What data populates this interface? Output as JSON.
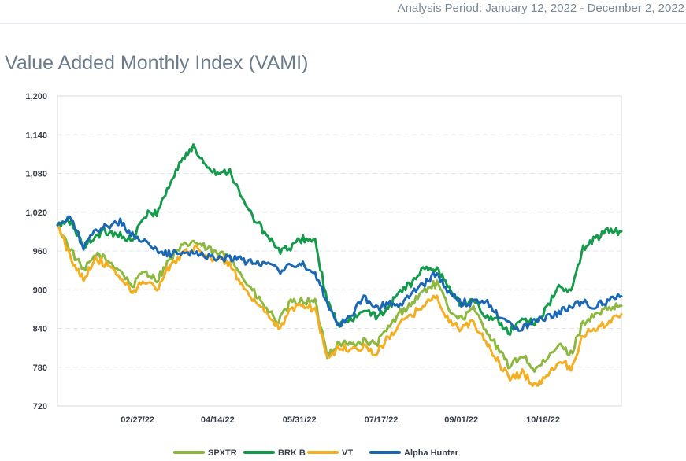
{
  "header": {
    "period_label": "Analysis Period: January 12, 2022 - December 2, 2022"
  },
  "chart_data": {
    "type": "line",
    "title": "Value Added Monthly Index (VAMI)",
    "xlabel": "",
    "ylabel": "",
    "x_ticks": [
      "02/27/22",
      "04/14/22",
      "05/31/22",
      "07/17/22",
      "09/01/22",
      "10/18/22"
    ],
    "y_ticks": [
      "1,200",
      "1,140",
      "1,080",
      "1,020",
      "960",
      "900",
      "840",
      "780",
      "720"
    ],
    "ylim": [
      720,
      1200
    ],
    "xlim": [
      "2022-01-12",
      "2022-12-02"
    ],
    "grid": "horizontal dashed",
    "legend_position": "bottom",
    "series": [
      {
        "name": "SPXTR",
        "color": "#8cb83f",
        "points": [
          [
            "2022-01-12",
            1000
          ],
          [
            "2022-01-20",
            960
          ],
          [
            "2022-01-27",
            928
          ],
          [
            "2022-02-03",
            955
          ],
          [
            "2022-02-10",
            945
          ],
          [
            "2022-02-17",
            930
          ],
          [
            "2022-02-24",
            905
          ],
          [
            "2022-03-03",
            930
          ],
          [
            "2022-03-10",
            915
          ],
          [
            "2022-03-17",
            945
          ],
          [
            "2022-03-24",
            965
          ],
          [
            "2022-03-31",
            975
          ],
          [
            "2022-04-07",
            965
          ],
          [
            "2022-04-14",
            955
          ],
          [
            "2022-04-21",
            955
          ],
          [
            "2022-04-28",
            920
          ],
          [
            "2022-05-05",
            895
          ],
          [
            "2022-05-12",
            870
          ],
          [
            "2022-05-19",
            850
          ],
          [
            "2022-05-26",
            880
          ],
          [
            "2022-06-02",
            883
          ],
          [
            "2022-06-09",
            880
          ],
          [
            "2022-06-16",
            800
          ],
          [
            "2022-06-23",
            818
          ],
          [
            "2022-06-30",
            815
          ],
          [
            "2022-07-07",
            820
          ],
          [
            "2022-07-14",
            815
          ],
          [
            "2022-07-21",
            840
          ],
          [
            "2022-07-28",
            865
          ],
          [
            "2022-08-04",
            880
          ],
          [
            "2022-08-11",
            900
          ],
          [
            "2022-08-18",
            910
          ],
          [
            "2022-08-25",
            870
          ],
          [
            "2022-09-01",
            855
          ],
          [
            "2022-09-08",
            870
          ],
          [
            "2022-09-15",
            840
          ],
          [
            "2022-09-22",
            808
          ],
          [
            "2022-09-29",
            780
          ],
          [
            "2022-10-06",
            800
          ],
          [
            "2022-10-13",
            775
          ],
          [
            "2022-10-20",
            790
          ],
          [
            "2022-10-27",
            815
          ],
          [
            "2022-11-03",
            800
          ],
          [
            "2022-11-10",
            850
          ],
          [
            "2022-11-17",
            860
          ],
          [
            "2022-11-24",
            870
          ],
          [
            "2022-12-02",
            875
          ]
        ]
      },
      {
        "name": "BRK B",
        "color": "#159a4b",
        "points": [
          [
            "2022-01-12",
            1000
          ],
          [
            "2022-01-20",
            1005
          ],
          [
            "2022-01-27",
            965
          ],
          [
            "2022-02-03",
            985
          ],
          [
            "2022-02-10",
            990
          ],
          [
            "2022-02-17",
            985
          ],
          [
            "2022-02-24",
            975
          ],
          [
            "2022-03-03",
            1015
          ],
          [
            "2022-03-10",
            1020
          ],
          [
            "2022-03-17",
            1060
          ],
          [
            "2022-03-24",
            1100
          ],
          [
            "2022-03-31",
            1120
          ],
          [
            "2022-04-07",
            1095
          ],
          [
            "2022-04-14",
            1080
          ],
          [
            "2022-04-21",
            1085
          ],
          [
            "2022-04-28",
            1040
          ],
          [
            "2022-05-05",
            1010
          ],
          [
            "2022-05-12",
            985
          ],
          [
            "2022-05-19",
            960
          ],
          [
            "2022-05-26",
            965
          ],
          [
            "2022-06-02",
            980
          ],
          [
            "2022-06-09",
            975
          ],
          [
            "2022-06-16",
            880
          ],
          [
            "2022-06-23",
            845
          ],
          [
            "2022-06-30",
            855
          ],
          [
            "2022-07-07",
            865
          ],
          [
            "2022-07-14",
            860
          ],
          [
            "2022-07-21",
            870
          ],
          [
            "2022-07-28",
            900
          ],
          [
            "2022-08-04",
            910
          ],
          [
            "2022-08-11",
            935
          ],
          [
            "2022-08-18",
            930
          ],
          [
            "2022-08-25",
            905
          ],
          [
            "2022-09-01",
            875
          ],
          [
            "2022-09-08",
            885
          ],
          [
            "2022-09-15",
            860
          ],
          [
            "2022-09-22",
            850
          ],
          [
            "2022-09-29",
            835
          ],
          [
            "2022-10-06",
            855
          ],
          [
            "2022-10-13",
            850
          ],
          [
            "2022-10-20",
            870
          ],
          [
            "2022-10-27",
            905
          ],
          [
            "2022-11-03",
            895
          ],
          [
            "2022-11-10",
            965
          ],
          [
            "2022-11-17",
            980
          ],
          [
            "2022-11-24",
            990
          ],
          [
            "2022-12-02",
            990
          ]
        ]
      },
      {
        "name": "VT",
        "color": "#f4ae22",
        "points": [
          [
            "2022-01-12",
            1000
          ],
          [
            "2022-01-20",
            945
          ],
          [
            "2022-01-27",
            918
          ],
          [
            "2022-02-03",
            950
          ],
          [
            "2022-02-10",
            935
          ],
          [
            "2022-02-17",
            920
          ],
          [
            "2022-02-24",
            895
          ],
          [
            "2022-03-03",
            915
          ],
          [
            "2022-03-10",
            900
          ],
          [
            "2022-03-17",
            935
          ],
          [
            "2022-03-24",
            955
          ],
          [
            "2022-03-31",
            965
          ],
          [
            "2022-04-07",
            955
          ],
          [
            "2022-04-14",
            945
          ],
          [
            "2022-04-21",
            942
          ],
          [
            "2022-04-28",
            905
          ],
          [
            "2022-05-05",
            880
          ],
          [
            "2022-05-12",
            862
          ],
          [
            "2022-05-19",
            840
          ],
          [
            "2022-05-26",
            868
          ],
          [
            "2022-06-02",
            878
          ],
          [
            "2022-06-09",
            870
          ],
          [
            "2022-06-16",
            795
          ],
          [
            "2022-06-23",
            810
          ],
          [
            "2022-06-30",
            808
          ],
          [
            "2022-07-07",
            812
          ],
          [
            "2022-07-14",
            800
          ],
          [
            "2022-07-21",
            825
          ],
          [
            "2022-07-28",
            848
          ],
          [
            "2022-08-04",
            860
          ],
          [
            "2022-08-11",
            880
          ],
          [
            "2022-08-18",
            888
          ],
          [
            "2022-08-25",
            850
          ],
          [
            "2022-09-01",
            840
          ],
          [
            "2022-09-08",
            848
          ],
          [
            "2022-09-15",
            820
          ],
          [
            "2022-09-22",
            790
          ],
          [
            "2022-09-29",
            760
          ],
          [
            "2022-10-06",
            772
          ],
          [
            "2022-10-13",
            752
          ],
          [
            "2022-10-20",
            765
          ],
          [
            "2022-10-27",
            790
          ],
          [
            "2022-11-03",
            780
          ],
          [
            "2022-11-10",
            830
          ],
          [
            "2022-11-17",
            840
          ],
          [
            "2022-11-24",
            850
          ],
          [
            "2022-12-02",
            862
          ]
        ]
      },
      {
        "name": "Alpha Hunter",
        "color": "#1a68b3",
        "points": [
          [
            "2022-01-12",
            1000
          ],
          [
            "2022-01-20",
            1010
          ],
          [
            "2022-01-27",
            965
          ],
          [
            "2022-02-03",
            990
          ],
          [
            "2022-02-10",
            1000
          ],
          [
            "2022-02-17",
            1005
          ],
          [
            "2022-02-24",
            985
          ],
          [
            "2022-03-03",
            975
          ],
          [
            "2022-03-10",
            960
          ],
          [
            "2022-03-17",
            955
          ],
          [
            "2022-03-24",
            960
          ],
          [
            "2022-03-31",
            955
          ],
          [
            "2022-04-07",
            955
          ],
          [
            "2022-04-14",
            948
          ],
          [
            "2022-04-21",
            950
          ],
          [
            "2022-04-28",
            945
          ],
          [
            "2022-05-05",
            940
          ],
          [
            "2022-05-12",
            945
          ],
          [
            "2022-05-19",
            930
          ],
          [
            "2022-05-26",
            935
          ],
          [
            "2022-06-02",
            940
          ],
          [
            "2022-06-09",
            925
          ],
          [
            "2022-06-16",
            880
          ],
          [
            "2022-06-23",
            845
          ],
          [
            "2022-06-30",
            862
          ],
          [
            "2022-07-07",
            890
          ],
          [
            "2022-07-14",
            870
          ],
          [
            "2022-07-21",
            880
          ],
          [
            "2022-07-28",
            875
          ],
          [
            "2022-08-04",
            895
          ],
          [
            "2022-08-11",
            910
          ],
          [
            "2022-08-18",
            925
          ],
          [
            "2022-08-25",
            895
          ],
          [
            "2022-09-01",
            880
          ],
          [
            "2022-09-08",
            880
          ],
          [
            "2022-09-15",
            885
          ],
          [
            "2022-09-22",
            862
          ],
          [
            "2022-09-29",
            845
          ],
          [
            "2022-10-06",
            840
          ],
          [
            "2022-10-13",
            855
          ],
          [
            "2022-10-20",
            858
          ],
          [
            "2022-10-27",
            865
          ],
          [
            "2022-11-03",
            875
          ],
          [
            "2022-11-10",
            880
          ],
          [
            "2022-11-17",
            875
          ],
          [
            "2022-11-24",
            882
          ],
          [
            "2022-12-02",
            890
          ]
        ]
      }
    ]
  }
}
